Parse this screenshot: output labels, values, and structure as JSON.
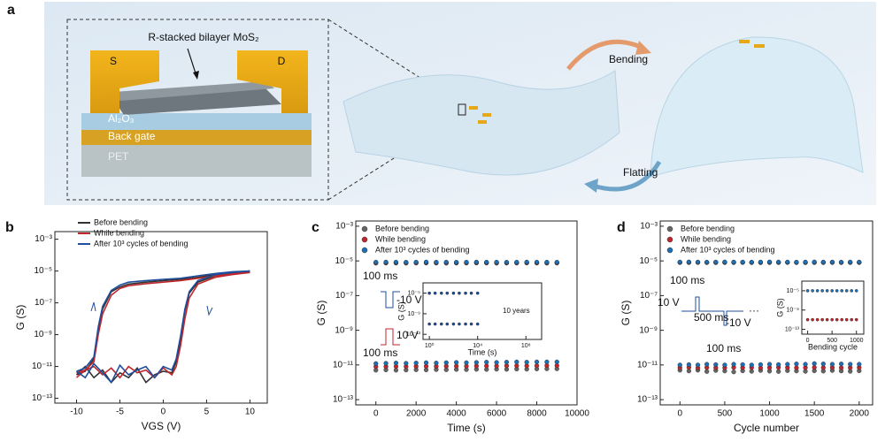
{
  "panel_a": {
    "label": "a",
    "title": "R-stacked bilayer MoS₂",
    "source": "S",
    "drain": "D",
    "dielectric": "Al₂O₃",
    "gate": "Back gate",
    "substrate": "PET",
    "bend": "Bending",
    "flat": "Flatting"
  },
  "chart_data": [
    {
      "type": "line",
      "panel": "b",
      "x_label": "VGS (V)",
      "y_label": "G (S)",
      "ylog": true,
      "xlim": [
        -12.5,
        12
      ],
      "ylim": [
        5e-14,
        0.003
      ],
      "xticks": [
        -10,
        -5,
        0,
        5,
        10
      ],
      "yticks": [
        {
          "value": 0.001,
          "label": "10⁻³"
        },
        {
          "value": 1e-05,
          "label": "10⁻⁵"
        },
        {
          "value": 1e-07,
          "label": "10⁻⁷"
        },
        {
          "value": 1e-09,
          "label": "10⁻⁹"
        },
        {
          "value": 1e-11,
          "label": "10⁻¹¹"
        },
        {
          "value": 1e-13,
          "label": "10⁻¹³"
        }
      ],
      "x": [
        -10,
        -9,
        -8,
        -7,
        -6,
        -5,
        -4,
        -3,
        -2,
        -1,
        0,
        1,
        1.5,
        2,
        2.5,
        3,
        4,
        6,
        8,
        10,
        8,
        6,
        4,
        2,
        0,
        -2,
        -4,
        -5,
        -6,
        -7,
        -7.5,
        -8,
        -9,
        -10
      ],
      "series": [
        {
          "name": "Before bending",
          "color": "#333333",
          "values": [
            3e-12,
            1e-11,
            2e-12,
            6e-12,
            1e-12,
            4e-12,
            2e-12,
            8e-12,
            1e-12,
            3e-12,
            5e-12,
            4e-12,
            2e-11,
            5e-10,
            3e-08,
            4e-07,
            2e-06,
            5e-06,
            7e-06,
            9e-06,
            8e-06,
            6e-06,
            4e-06,
            3e-06,
            2.5e-06,
            2e-06,
            1.5e-06,
            1e-06,
            5e-07,
            4e-08,
            2e-09,
            3e-11,
            5e-12,
            3e-12
          ]
        },
        {
          "name": "While bending",
          "color": "#c0272d",
          "values": [
            2e-12,
            6e-12,
            1e-11,
            3e-12,
            8e-12,
            2e-12,
            1e-11,
            4e-12,
            6e-12,
            2e-12,
            8e-12,
            3e-12,
            1e-11,
            2e-10,
            1e-08,
            2e-07,
            1.5e-06,
            4e-06,
            6e-06,
            8e-06,
            7e-06,
            5e-06,
            3.5e-06,
            2.5e-06,
            2e-06,
            1.6e-06,
            1.2e-06,
            8e-07,
            3e-07,
            2e-08,
            1e-09,
            2e-11,
            6e-12,
            4e-12
          ]
        },
        {
          "name": "After 10³ cycles of bending",
          "color": "#1f4e9c",
          "values": [
            5e-12,
            2e-12,
            1.5e-11,
            4e-12,
            1e-12,
            1.2e-11,
            3e-12,
            6e-12,
            1e-11,
            2e-12,
            1e-11,
            6e-12,
            3e-11,
            8e-10,
            4e-08,
            5e-07,
            2.5e-06,
            6e-06,
            8e-06,
            1e-05,
            9e-06,
            7e-06,
            5e-06,
            3.5e-06,
            3e-06,
            2.5e-06,
            2e-06,
            1.3e-06,
            6e-07,
            6e-08,
            3e-09,
            4e-11,
            8e-12,
            5e-12
          ]
        }
      ]
    },
    {
      "type": "scatter",
      "panel": "c",
      "x_label": "Time (s)",
      "y_label": "G (S)",
      "ylog": true,
      "xlim": [
        -1000,
        10000
      ],
      "ylim": [
        5e-14,
        0.002
      ],
      "xticks": [
        0,
        2000,
        4000,
        6000,
        8000,
        10000
      ],
      "yticks": [
        {
          "value": 0.001,
          "label": "10⁻³"
        },
        {
          "value": 1e-05,
          "label": "10⁻⁵"
        },
        {
          "value": 1e-07,
          "label": "10⁻⁷"
        },
        {
          "value": 1e-09,
          "label": "10⁻⁹"
        },
        {
          "value": 1e-11,
          "label": "10⁻¹¹"
        },
        {
          "value": 1e-13,
          "label": "10⁻¹³"
        }
      ],
      "annotations": [
        "100 ms",
        "-10 V",
        "10 V",
        "100 ms"
      ],
      "x": [
        0,
        500,
        1000,
        1500,
        2000,
        2500,
        3000,
        3500,
        4000,
        4500,
        5000,
        5500,
        6000,
        6500,
        7000,
        7500,
        8000,
        8500,
        9000
      ],
      "series": [
        {
          "name": "Before bending",
          "color": "#666666",
          "values": [
            7.4e-06,
            7.5e-06,
            7.5e-06,
            7.4e-06,
            7.5e-06,
            7.6e-06,
            7.5e-06,
            7.4e-06,
            7.5e-06,
            7.5e-06,
            7.6e-06,
            7.5e-06,
            7.4e-06,
            7.5e-06,
            7.5e-06,
            7.6e-06,
            7.5e-06,
            7.4e-06,
            7.5e-06
          ],
          "values_off": [
            5e-12,
            5.2e-12,
            5e-12,
            5.1e-12,
            5.3e-12,
            5.2e-12,
            5.4e-12,
            5.3e-12,
            5.5e-12,
            5.4e-12,
            5.6e-12,
            5.5e-12,
            5.7e-12,
            5.6e-12,
            5.8e-12,
            5.7e-12,
            5.9e-12,
            6e-12,
            6e-12
          ]
        },
        {
          "name": "While bending",
          "color": "#c0272d",
          "values": [
            8e-06,
            8e-06,
            8.1e-06,
            8e-06,
            7.9e-06,
            8e-06,
            8.1e-06,
            8e-06,
            8e-06,
            7.9e-06,
            8e-06,
            8.1e-06,
            8e-06,
            8e-06,
            7.9e-06,
            8e-06,
            8e-06,
            8.1e-06,
            8e-06
          ],
          "values_off": [
            8e-12,
            8.1e-12,
            8.2e-12,
            8.1e-12,
            8.3e-12,
            8.4e-12,
            8.3e-12,
            8.5e-12,
            8.6e-12,
            8.5e-12,
            8.7e-12,
            8.8e-12,
            8.7e-12,
            8.9e-12,
            9e-12,
            8.9e-12,
            9.1e-12,
            9.2e-12,
            9.2e-12
          ]
        },
        {
          "name": "After 10³ cycles of bending",
          "color": "#1f6fb5",
          "values": [
            8.5e-06,
            8.6e-06,
            8.5e-06,
            8.4e-06,
            8.5e-06,
            8.6e-06,
            8.5e-06,
            8.5e-06,
            8.4e-06,
            8.5e-06,
            8.6e-06,
            8.5e-06,
            8.5e-06,
            8.4e-06,
            8.5e-06,
            8.6e-06,
            8.5e-06,
            8.5e-06,
            8.4e-06
          ],
          "values_off": [
            1.2e-11,
            1.25e-11,
            1.3e-11,
            1.25e-11,
            1.3e-11,
            1.35e-11,
            1.3e-11,
            1.35e-11,
            1.4e-11,
            1.35e-11,
            1.4e-11,
            1.45e-11,
            1.4e-11,
            1.45e-11,
            1.5e-11,
            1.45e-11,
            1.5e-11,
            1.5e-11,
            1.5e-11
          ]
        }
      ],
      "inset": {
        "type": "scatter",
        "x_label": "Time (s)",
        "y_label": "G (S)",
        "ylog": true,
        "xlog": true,
        "xlim": [
          0.3,
          2000000000.0
        ],
        "ylim": [
          1e-14,
          0.001
        ],
        "xticks": [
          {
            "value": 1,
            "label": "10⁰"
          },
          {
            "value": 10000,
            "label": "10⁴"
          },
          {
            "value": 100000000,
            "label": "10⁸"
          }
        ],
        "yticks": [
          {
            "value": 1e-05,
            "label": "10⁻⁵"
          },
          {
            "value": 1e-09,
            "label": "10⁻⁹"
          },
          {
            "value": 1e-13,
            "label": "10⁻¹³"
          }
        ],
        "annotations": [
          "10 years"
        ],
        "x": [
          1,
          3,
          10,
          30,
          100,
          300,
          1000,
          3000,
          10000
        ],
        "series": [
          {
            "color": "#1f4e9c",
            "values": [
              1e-05,
              1e-05,
              1e-05,
              1e-05,
              1e-05,
              1e-05,
              1e-05,
              1e-05,
              1e-05
            ],
            "values_off": [
              1e-11,
              1e-11,
              1e-11,
              1e-11,
              1e-11,
              1e-11,
              1e-11,
              1e-11,
              1e-11
            ]
          }
        ]
      }
    },
    {
      "type": "scatter",
      "panel": "d",
      "x_label": "Cycle number",
      "y_label": "G (S)",
      "ylog": true,
      "xlim": [
        -220,
        2150
      ],
      "ylim": [
        5e-14,
        0.002
      ],
      "xticks": [
        0,
        500,
        1000,
        1500,
        2000
      ],
      "yticks": [
        {
          "value": 0.001,
          "label": "10⁻³"
        },
        {
          "value": 1e-05,
          "label": "10⁻⁵"
        },
        {
          "value": 1e-07,
          "label": "10⁻⁷"
        },
        {
          "value": 1e-09,
          "label": "10⁻⁹"
        },
        {
          "value": 1e-11,
          "label": "10⁻¹¹"
        },
        {
          "value": 1e-13,
          "label": "10⁻¹³"
        }
      ],
      "annotations": [
        "100 ms",
        "10 V",
        "500 ms",
        "-10 V",
        "···",
        "100 ms"
      ],
      "x": [
        0,
        100,
        200,
        300,
        400,
        500,
        600,
        700,
        800,
        900,
        1000,
        1100,
        1200,
        1300,
        1400,
        1500,
        1600,
        1700,
        1800,
        1900,
        2000
      ],
      "series": [
        {
          "name": "Before bending",
          "color": "#666666",
          "values": [
            8e-06,
            8e-06,
            8.1e-06,
            8e-06,
            7.9e-06,
            8e-06,
            8e-06,
            8.1e-06,
            8e-06,
            7.9e-06,
            8e-06,
            8e-06,
            8.1e-06,
            8e-06,
            7.9e-06,
            8e-06,
            8e-06,
            8.1e-06,
            8e-06,
            8e-06,
            8e-06
          ],
          "values_off": [
            5e-12,
            4.5e-12,
            5e-12,
            4.2e-12,
            4.8e-12,
            4.5e-12,
            4e-12,
            4.6e-12,
            4.3e-12,
            4.8e-12,
            4.4e-12,
            4.2e-12,
            4.7e-12,
            4.5e-12,
            4.3e-12,
            4.6e-12,
            4.4e-12,
            4.8e-12,
            4.5e-12,
            4.3e-12,
            4.6e-12
          ]
        },
        {
          "name": "While bending",
          "color": "#c0272d",
          "values": [
            8.3e-06,
            8.4e-06,
            8.3e-06,
            8.2e-06,
            8.3e-06,
            8.4e-06,
            8.3e-06,
            8.3e-06,
            8.2e-06,
            8.3e-06,
            8.4e-06,
            8.3e-06,
            8.3e-06,
            8.2e-06,
            8.3e-06,
            8.4e-06,
            8.3e-06,
            8.3e-06,
            8.2e-06,
            8.3e-06,
            8.3e-06
          ],
          "values_off": [
            7e-12,
            7.2e-12,
            6.8e-12,
            7.1e-12,
            7e-12,
            6.9e-12,
            7.2e-12,
            7e-12,
            7.1e-12,
            6.8e-12,
            7e-12,
            7.2e-12,
            7.1e-12,
            6.9e-12,
            7e-12,
            7.2e-12,
            7e-12,
            7.1e-12,
            6.9e-12,
            7e-12,
            7.1e-12
          ]
        },
        {
          "name": "After 10³ cycles of bending",
          "color": "#1f6fb5",
          "values": [
            8.6e-06,
            8.7e-06,
            8.6e-06,
            8.5e-06,
            8.6e-06,
            8.7e-06,
            8.6e-06,
            8.6e-06,
            8.5e-06,
            8.6e-06,
            8.7e-06,
            8.6e-06,
            8.6e-06,
            8.5e-06,
            8.6e-06,
            8.7e-06,
            8.6e-06,
            8.6e-06,
            8.5e-06,
            8.6e-06,
            8.6e-06
          ],
          "values_off": [
            1e-11,
            1.05e-11,
            1e-11,
            1.1e-11,
            1.05e-11,
            1e-11,
            1.1e-11,
            1.05e-11,
            1e-11,
            1.05e-11,
            1.1e-11,
            1.05e-11,
            1.1e-11,
            1.15e-11,
            1.1e-11,
            1.2e-11,
            1.15e-11,
            1.1e-11,
            1.15e-11,
            1.1e-11,
            1.1e-11
          ]
        }
      ],
      "inset": {
        "type": "scatter",
        "x_label": "Bending cycle",
        "y_label": "G (S)",
        "ylog": true,
        "xlim": [
          -120,
          1150
        ],
        "ylim": [
          1e-14,
          0.001
        ],
        "xticks": [
          0,
          500,
          1000
        ],
        "yticks": [
          {
            "value": 1e-05,
            "label": "10⁻⁵"
          },
          {
            "value": 1e-09,
            "label": "10⁻⁹"
          },
          {
            "value": 1e-13,
            "label": "10⁻¹³"
          }
        ],
        "x": [
          0,
          100,
          200,
          300,
          400,
          500,
          600,
          700,
          800,
          900,
          1000
        ],
        "series": [
          {
            "color": "#1f6fb5",
            "values": [
              1e-05,
              1e-05,
              1e-05,
              1e-05,
              1e-05,
              1e-05,
              1e-05,
              1e-05,
              1e-05,
              1e-05,
              1e-05
            ]
          },
          {
            "color": "#c0272d",
            "values": [
              1e-11,
              1e-11,
              1e-11,
              1e-11,
              1e-11,
              1e-11,
              1e-11,
              1e-11,
              1e-11,
              1e-11,
              1e-11
            ]
          }
        ]
      }
    }
  ]
}
